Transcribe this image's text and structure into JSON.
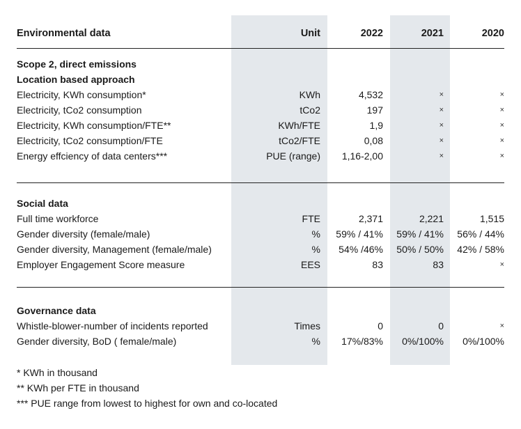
{
  "header": {
    "title": "Environmental data",
    "unit": "Unit",
    "y2022": "2022",
    "y2021": "2021",
    "y2020": "2020"
  },
  "environmental": {
    "section_title": "Scope 2, direct emissions",
    "subsection_title": "Location based approach",
    "rows": [
      {
        "label": "Electricity, KWh consumption*",
        "unit": "KWh",
        "v2022": "4,532",
        "v2021": "×",
        "v2020": "×"
      },
      {
        "label": "Electricity, tCo2 consumption",
        "unit": "tCo2",
        "v2022": "197",
        "v2021": "×",
        "v2020": "×"
      },
      {
        "label": "Electricity, KWh consumption/FTE**",
        "unit": "KWh/FTE",
        "v2022": "1,9",
        "v2021": "×",
        "v2020": "×"
      },
      {
        "label": "Electricity, tCo2 consumption/FTE",
        "unit": "tCo2/FTE",
        "v2022": "0,08",
        "v2021": "×",
        "v2020": "×"
      },
      {
        "label": "Energy effciency of data centers***",
        "unit": "PUE (range)",
        "v2022": "1,16-2,00",
        "v2021": "×",
        "v2020": "×"
      }
    ]
  },
  "social": {
    "section_title": "Social data",
    "rows": [
      {
        "label": "Full time workforce",
        "unit": "FTE",
        "v2022": "2,371",
        "v2021": "2,221",
        "v2020": "1,515"
      },
      {
        "label": "Gender diversity (female/male)",
        "unit": "%",
        "v2022": "59% / 41%",
        "v2021": "59% / 41%",
        "v2020": "56% / 44%"
      },
      {
        "label": "Gender diversity, Management (female/male)",
        "unit": "%",
        "v2022": "54% /46%",
        "v2021": "50% / 50%",
        "v2020": "42% / 58%"
      },
      {
        "label": "Employer Engagement Score measure",
        "unit": "EES",
        "v2022": "83",
        "v2021": "83",
        "v2020": "×"
      }
    ]
  },
  "governance": {
    "section_title": "Governance data",
    "rows": [
      {
        "label": "Whistle-blower-number of incidents reported",
        "unit": "Times",
        "v2022": "0",
        "v2021": "0",
        "v2020": "×"
      },
      {
        "label": "Gender diversity, BoD ( female/male)",
        "unit": "%",
        "v2022": "17%/83%",
        "v2021": "0%/100%",
        "v2020": "0%/100%"
      }
    ]
  },
  "footnotes": [
    "* KWh in thousand",
    "** KWh per FTE in thousand",
    "*** PUE range from lowest to highest for own and co-located"
  ]
}
